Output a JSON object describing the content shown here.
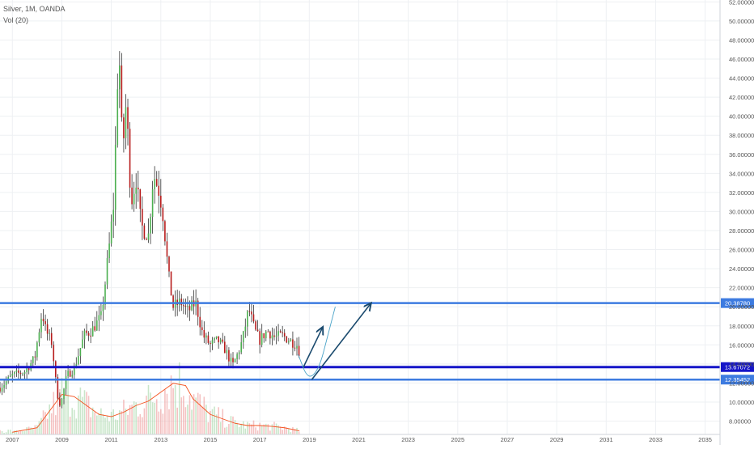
{
  "legend": {
    "symbol_line": "Silver, 1M, OANDA",
    "vol_line": "Vol (20)"
  },
  "colors": {
    "up": "#4caf50",
    "down": "#b71c1c",
    "volume_up": "#a5d6a7",
    "volume_down": "#ef9a9a",
    "volume_ma": "#f4511e",
    "level_line": "#3d7be0",
    "level_line_dark": "#1515c8",
    "arrow": "#1a4a6e",
    "grid": "#eef0f3",
    "axis_text": "#555555"
  },
  "chart_data": {
    "type": "candlestick",
    "title": "",
    "symbol": "Silver",
    "interval": "1M",
    "source": "OANDA",
    "x_ticks": [
      "2007",
      "2009",
      "2011",
      "2013",
      "2015",
      "2017",
      "2019",
      "2021",
      "2023",
      "2025",
      "2027",
      "2029",
      "2031",
      "2033",
      "2035"
    ],
    "xlim": [
      2006.5,
      2035.6
    ],
    "ylim": [
      6.6,
      52.2
    ],
    "y_ticks": [
      "8.00000",
      "10.00000",
      "12.00000",
      "14.00000",
      "16.00000",
      "18.00000",
      "20.00000",
      "22.00000",
      "24.00000",
      "26.00000",
      "28.00000",
      "30.00000",
      "32.00000",
      "34.00000",
      "36.00000",
      "38.00000",
      "40.00000",
      "42.00000",
      "44.00000",
      "46.00000",
      "48.00000",
      "50.00000",
      "52.00000"
    ],
    "grid": true,
    "horizontal_levels": [
      {
        "value": 20.3878,
        "label": "20.38780",
        "style": "light"
      },
      {
        "value": 13.67072,
        "label": "13.67072",
        "style": "dark"
      },
      {
        "value": 12.35452,
        "label": "12.35452",
        "style": "light"
      }
    ],
    "price_path": [
      [
        2006.5,
        11.5
      ],
      [
        2007.0,
        12.8
      ],
      [
        2007.5,
        13.2
      ],
      [
        2007.9,
        14.6
      ],
      [
        2008.2,
        19.5
      ],
      [
        2008.35,
        17.5
      ],
      [
        2008.6,
        16.2
      ],
      [
        2008.8,
        11.0
      ],
      [
        2008.95,
        9.6
      ],
      [
        2009.2,
        12.8
      ],
      [
        2009.5,
        13.5
      ],
      [
        2009.9,
        17.0
      ],
      [
        2010.2,
        17.5
      ],
      [
        2010.6,
        19.0
      ],
      [
        2010.9,
        26.0
      ],
      [
        2011.1,
        31.0
      ],
      [
        2011.3,
        48.0
      ],
      [
        2011.45,
        36.0
      ],
      [
        2011.6,
        41.5
      ],
      [
        2011.8,
        31.0
      ],
      [
        2012.0,
        33.5
      ],
      [
        2012.2,
        28.5
      ],
      [
        2012.5,
        27.5
      ],
      [
        2012.7,
        34.0
      ],
      [
        2012.95,
        32.0
      ],
      [
        2013.1,
        29.5
      ],
      [
        2013.3,
        23.5
      ],
      [
        2013.5,
        20.0
      ],
      [
        2013.8,
        20.5
      ],
      [
        2014.1,
        19.5
      ],
      [
        2014.4,
        20.5
      ],
      [
        2014.7,
        17.0
      ],
      [
        2015.0,
        16.0
      ],
      [
        2015.3,
        16.5
      ],
      [
        2015.6,
        15.5
      ],
      [
        2015.9,
        13.8
      ],
      [
        2016.1,
        15.0
      ],
      [
        2016.3,
        16.5
      ],
      [
        2016.55,
        19.8
      ],
      [
        2016.8,
        17.5
      ],
      [
        2017.0,
        16.5
      ],
      [
        2017.3,
        17.5
      ],
      [
        2017.6,
        16.8
      ],
      [
        2017.9,
        17.0
      ],
      [
        2018.2,
        16.5
      ],
      [
        2018.5,
        16.0
      ],
      [
        2018.65,
        14.8
      ]
    ],
    "volume_ma_path": [
      [
        2007.0,
        0.5
      ],
      [
        2008.0,
        1.5
      ],
      [
        2008.6,
        6.0
      ],
      [
        2009.0,
        9.0
      ],
      [
        2009.5,
        8.5
      ],
      [
        2010.0,
        6.5
      ],
      [
        2010.5,
        4.5
      ],
      [
        2011.0,
        4.0
      ],
      [
        2011.5,
        5.0
      ],
      [
        2012.0,
        6.5
      ],
      [
        2012.5,
        7.5
      ],
      [
        2013.0,
        9.5
      ],
      [
        2013.5,
        11.5
      ],
      [
        2014.0,
        11.0
      ],
      [
        2014.3,
        8.0
      ],
      [
        2015.0,
        4.5
      ],
      [
        2015.5,
        3.5
      ],
      [
        2016.0,
        2.5
      ],
      [
        2016.5,
        2.0
      ],
      [
        2017.0,
        2.0
      ],
      [
        2017.5,
        1.8
      ],
      [
        2018.0,
        1.5
      ],
      [
        2018.6,
        0.8
      ]
    ],
    "projection_arrows": [
      {
        "from": [
          2018.75,
          13.6
        ],
        "to": [
          2019.55,
          17.9
        ]
      },
      {
        "from": [
          2019.1,
          12.35
        ],
        "to": [
          2021.5,
          20.4
        ]
      }
    ],
    "projection_curve": [
      [
        2018.55,
        15.0
      ],
      [
        2018.95,
        12.3
      ],
      [
        2019.4,
        13.5
      ],
      [
        2019.75,
        17.0
      ],
      [
        2020.05,
        20.0
      ]
    ]
  }
}
